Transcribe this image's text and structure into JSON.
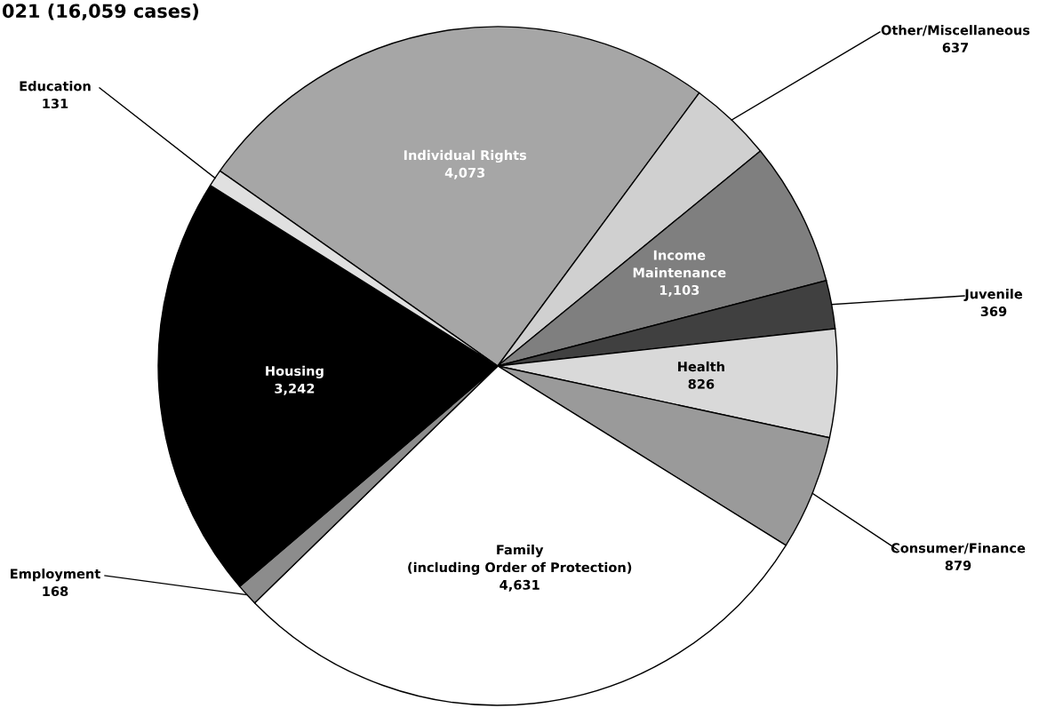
{
  "chart_data": {
    "type": "pie",
    "title": "021 (16,059 cases)",
    "categories": [
      "Individual Rights",
      "Other/Miscellaneous",
      "Income\nMaintenance",
      "Juvenile",
      "Health",
      "Consumer/Finance",
      "Family\n(including Order of Protection)",
      "Employment",
      "Housing",
      "Education"
    ],
    "values": [
      4073,
      637,
      1103,
      369,
      826,
      879,
      4631,
      168,
      3242,
      131
    ],
    "colors": [
      "#a6a6a6",
      "#d0d0d0",
      "#7f7f7f",
      "#404040",
      "#d9d9d9",
      "#9a9a9a",
      "#ffffff",
      "#8c8c8c",
      "#000000",
      "#e0e0e0"
    ],
    "value_labels": [
      "4,073",
      "637",
      "1,103",
      "369",
      "826",
      "879",
      "4,631",
      "168",
      "3,242",
      "131"
    ]
  }
}
